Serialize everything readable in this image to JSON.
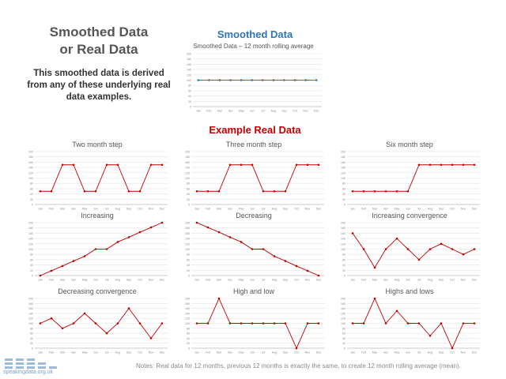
{
  "heading": {
    "line1": "Smoothed Data",
    "line2": "or Real Data"
  },
  "subtext": "This smoothed data is derived from any of these underlying real data examples.",
  "section_smoothed": "Smoothed Data",
  "section_real": "Example Real Data",
  "notes": "Notes: Real data for 12 months, previous 12 months is exactly the same, to create 12 month rolling average (mean).",
  "logo_text": "speakingdata.org.uk",
  "colors": {
    "blue": "#2e75b6",
    "red": "#c00000",
    "grid": "#e2e2e2",
    "axis_text": "#8a8a8a"
  },
  "chart_data": [
    {
      "type": "line",
      "title": "Smoothed Data – 12  month rolling average",
      "categories": [
        "Jan",
        "Feb",
        "Mar",
        "Apr",
        "May",
        "Jun",
        "Jul",
        "Aug",
        "Sep",
        "Oct",
        "Nov",
        "Dec"
      ],
      "yticks": [
        "0",
        "20",
        "40",
        "60",
        "80",
        "100",
        "120",
        "140",
        "160",
        "180",
        "200"
      ],
      "ylim": [
        0,
        200
      ],
      "series": [
        {
          "values": [
            100,
            100,
            100,
            100,
            100,
            100,
            100,
            100,
            100,
            100,
            100,
            100
          ]
        }
      ],
      "color": "#2e75b6",
      "grid": true
    },
    {
      "type": "line",
      "title": "Two month step",
      "categories": [
        "Jan",
        "Feb",
        "Mar",
        "Apr",
        "May",
        "Jun",
        "Jul",
        "Aug",
        "Sep",
        "Oct",
        "Nov",
        "Dec"
      ],
      "yticks": [
        "0",
        "20",
        "40",
        "60",
        "80",
        "100",
        "120",
        "140",
        "160",
        "180",
        "200"
      ],
      "ylim": [
        0,
        200
      ],
      "series": [
        {
          "values": [
            50,
            50,
            150,
            150,
            50,
            50,
            150,
            150,
            50,
            50,
            150,
            150
          ]
        }
      ],
      "color": "#c00000",
      "grid": true
    },
    {
      "type": "line",
      "title": "Three month step",
      "categories": [
        "Jan",
        "Feb",
        "Mar",
        "Apr",
        "May",
        "Jun",
        "Jul",
        "Aug",
        "Sep",
        "Oct",
        "Nov",
        "Dec"
      ],
      "yticks": [
        "0",
        "20",
        "40",
        "60",
        "80",
        "100",
        "120",
        "140",
        "160",
        "180",
        "200"
      ],
      "ylim": [
        0,
        200
      ],
      "series": [
        {
          "values": [
            50,
            50,
            50,
            150,
            150,
            150,
            50,
            50,
            50,
            150,
            150,
            150
          ]
        }
      ],
      "color": "#c00000",
      "grid": true
    },
    {
      "type": "line",
      "title": "Six  month step",
      "categories": [
        "Jan",
        "Feb",
        "Mar",
        "Apr",
        "May",
        "Jun",
        "Jul",
        "Aug",
        "Sep",
        "Oct",
        "Nov",
        "Dec"
      ],
      "yticks": [
        "0",
        "20",
        "40",
        "60",
        "80",
        "100",
        "120",
        "140",
        "160",
        "180",
        "200"
      ],
      "ylim": [
        0,
        200
      ],
      "series": [
        {
          "values": [
            50,
            50,
            50,
            50,
            50,
            50,
            150,
            150,
            150,
            150,
            150,
            150
          ]
        }
      ],
      "color": "#c00000",
      "grid": true
    },
    {
      "type": "line",
      "title": "Increasing",
      "categories": [
        "Jan",
        "Feb",
        "Mar",
        "Apr",
        "May",
        "Jun",
        "Jul",
        "Aug",
        "Sep",
        "Oct",
        "Nov",
        "Dec"
      ],
      "yticks": [
        "0",
        "20",
        "40",
        "60",
        "80",
        "100",
        "120",
        "140",
        "160",
        "180",
        "200"
      ],
      "ylim": [
        0,
        200
      ],
      "series": [
        {
          "values": [
            0,
            18,
            36,
            55,
            73,
            100,
            100,
            127,
            145,
            164,
            182,
            200
          ]
        }
      ],
      "color": "#c00000",
      "grid": true
    },
    {
      "type": "line",
      "title": "Decreasing",
      "categories": [
        "Jan",
        "Feb",
        "Mar",
        "Apr",
        "May",
        "Jun",
        "Jul",
        "Aug",
        "Sep",
        "Oct",
        "Nov",
        "Dec"
      ],
      "yticks": [
        "0",
        "20",
        "40",
        "60",
        "80",
        "100",
        "120",
        "140",
        "160",
        "180",
        "200"
      ],
      "ylim": [
        0,
        200
      ],
      "series": [
        {
          "values": [
            200,
            182,
            164,
            145,
            127,
            100,
            100,
            73,
            55,
            36,
            18,
            0
          ]
        }
      ],
      "color": "#c00000",
      "grid": true
    },
    {
      "type": "line",
      "title": "Increasing convergence",
      "categories": [
        "Jan",
        "Feb",
        "Mar",
        "Apr",
        "May",
        "Jun",
        "Jul",
        "Aug",
        "Sep",
        "Oct",
        "Nov",
        "Dec"
      ],
      "yticks": [
        "0",
        "20",
        "40",
        "60",
        "80",
        "100",
        "120",
        "140",
        "160",
        "180",
        "200"
      ],
      "ylim": [
        0,
        200
      ],
      "series": [
        {
          "values": [
            160,
            100,
            30,
            100,
            140,
            100,
            60,
            100,
            120,
            100,
            80,
            100
          ]
        }
      ],
      "color": "#c00000",
      "grid": true
    },
    {
      "type": "line",
      "title": "Decreasing convergence",
      "categories": [
        "Jan",
        "Feb",
        "Mar",
        "Apr",
        "May",
        "Jun",
        "Jul",
        "Aug",
        "Sep",
        "Oct",
        "Nov",
        "Dec"
      ],
      "yticks": [
        "0",
        "20",
        "40",
        "60",
        "80",
        "100",
        "120",
        "140",
        "160",
        "180",
        "200"
      ],
      "ylim": [
        0,
        200
      ],
      "series": [
        {
          "values": [
            100,
            120,
            80,
            100,
            140,
            100,
            60,
            100,
            160,
            100,
            40,
            100
          ]
        }
      ],
      "color": "#c00000",
      "grid": true
    },
    {
      "type": "line",
      "title": "High and low",
      "categories": [
        "Jan",
        "Feb",
        "Mar",
        "Apr",
        "May",
        "Jun",
        "Jul",
        "Aug",
        "Sep",
        "Oct",
        "Nov",
        "Dec"
      ],
      "yticks": [
        "0",
        "20",
        "40",
        "60",
        "80",
        "100",
        "120",
        "140",
        "160",
        "180",
        "200"
      ],
      "ylim": [
        0,
        200
      ],
      "series": [
        {
          "values": [
            100,
            100,
            200,
            100,
            100,
            100,
            100,
            100,
            100,
            0,
            100,
            100
          ]
        }
      ],
      "color": "#c00000",
      "grid": true
    },
    {
      "type": "line",
      "title": "Highs and lows",
      "categories": [
        "Jan",
        "Feb",
        "Mar",
        "Apr",
        "May",
        "Jun",
        "Jul",
        "Aug",
        "Sep",
        "Oct",
        "Nov",
        "Dec"
      ],
      "yticks": [
        "0",
        "20",
        "40",
        "60",
        "80",
        "100",
        "120",
        "140",
        "160",
        "180",
        "200"
      ],
      "ylim": [
        0,
        200
      ],
      "series": [
        {
          "values": [
            100,
            100,
            200,
            100,
            150,
            100,
            100,
            50,
            100,
            0,
            100,
            100
          ]
        }
      ],
      "color": "#c00000",
      "grid": true
    }
  ]
}
